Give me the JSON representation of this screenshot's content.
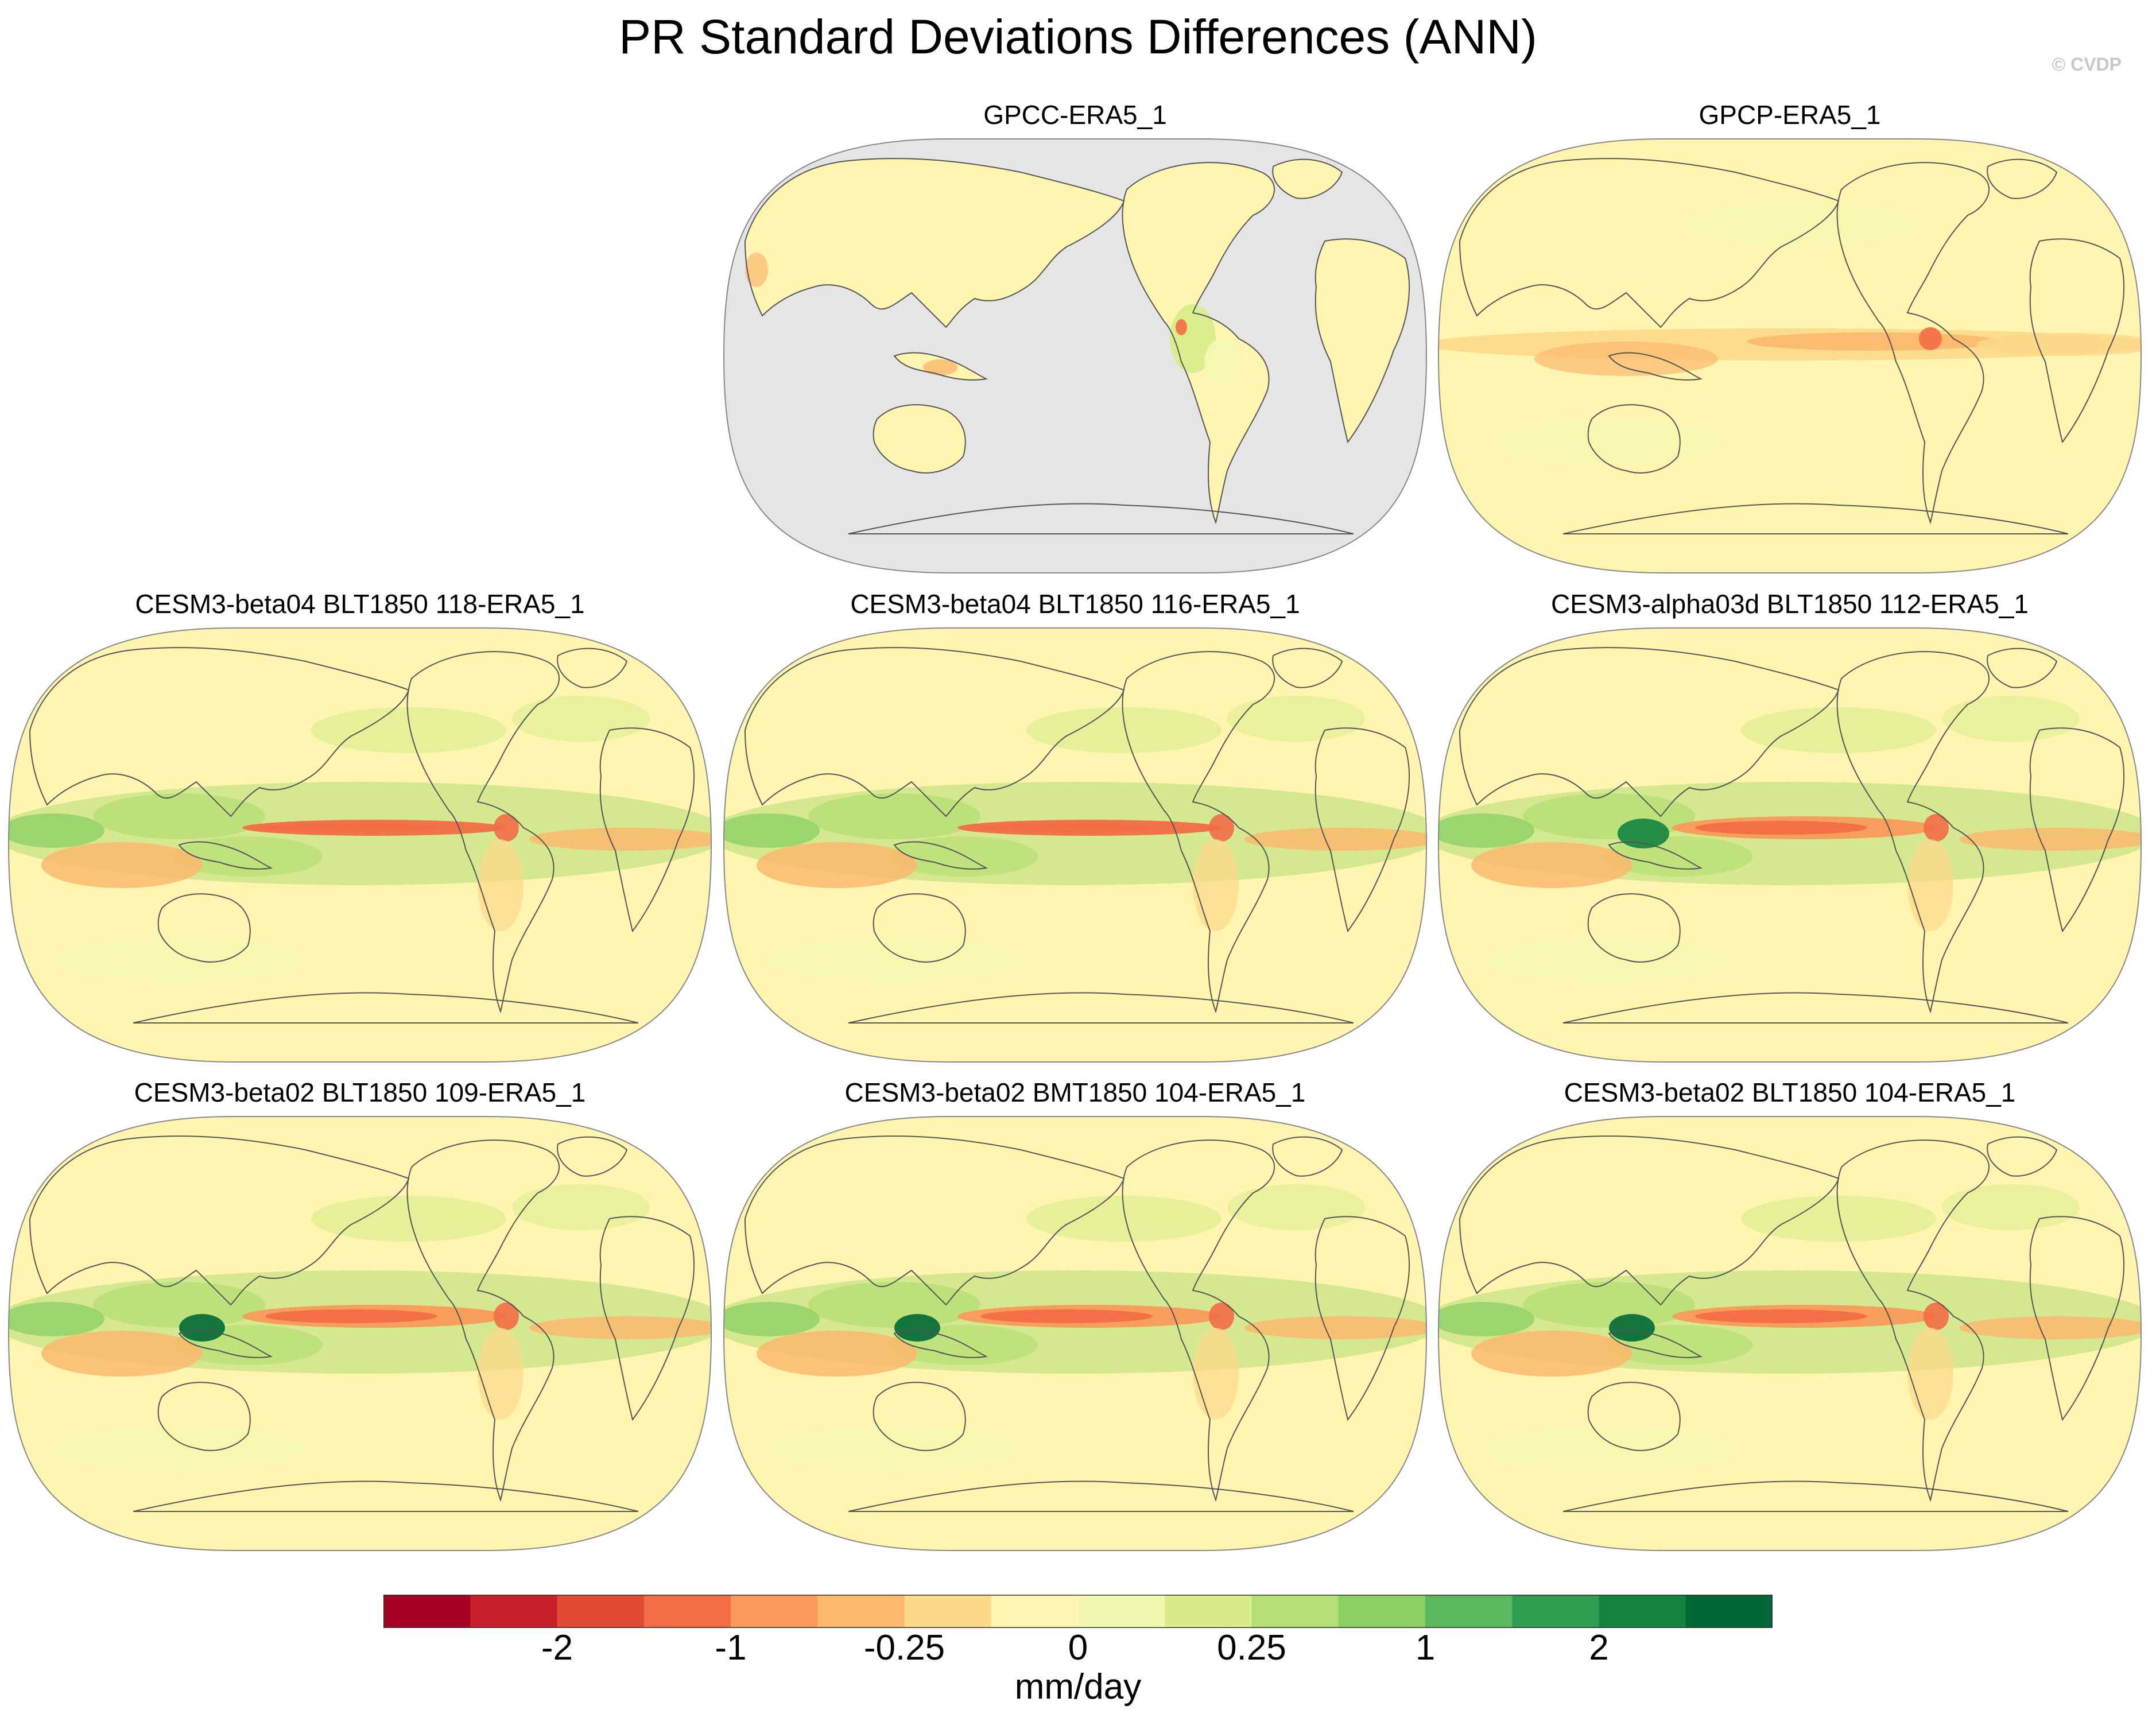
{
  "figure": {
    "title": "PR Standard Deviations Differences (ANN)",
    "watermark": "© CVDP"
  },
  "panels": [
    {
      "id": "gpcc",
      "title": "GPCC-ERA5_1",
      "mask_ocean": true,
      "pattern": "obs_land"
    },
    {
      "id": "gpcp",
      "title": "GPCP-ERA5_1",
      "mask_ocean": false,
      "pattern": "obs_ocean"
    },
    {
      "id": "b04_118",
      "title": "CESM3-beta04 BLT1850 118-ERA5_1",
      "mask_ocean": false,
      "pattern": "model_a"
    },
    {
      "id": "b04_116",
      "title": "CESM3-beta04 BLT1850 116-ERA5_1",
      "mask_ocean": false,
      "pattern": "model_a"
    },
    {
      "id": "a03d_112",
      "title": "CESM3-alpha03d BLT1850 112-ERA5_1",
      "mask_ocean": false,
      "pattern": "model_b"
    },
    {
      "id": "b02_109",
      "title": "CESM3-beta02 BLT1850 109-ERA5_1",
      "mask_ocean": false,
      "pattern": "model_c"
    },
    {
      "id": "b02_bmt104",
      "title": "CESM3-beta02 BMT1850 104-ERA5_1",
      "mask_ocean": false,
      "pattern": "model_c"
    },
    {
      "id": "b02_blt104",
      "title": "CESM3-beta02 BLT1850 104-ERA5_1",
      "mask_ocean": false,
      "pattern": "model_c"
    }
  ],
  "colorbar": {
    "units": "mm/day",
    "colors": [
      "#a50026",
      "#c8202a",
      "#e34a33",
      "#f26d45",
      "#f99a5a",
      "#fcb86d",
      "#fdd98a",
      "#fff4b0",
      "#f3f8b0",
      "#d6ed8a",
      "#b5df74",
      "#8ccf64",
      "#5cb85c",
      "#2f9e50",
      "#13843f",
      "#006837"
    ],
    "tick_labels": [
      "-2",
      "-1",
      "-0.25",
      "0",
      "0.25",
      "1",
      "2"
    ],
    "tick_boundaries": [
      2,
      4,
      6,
      8,
      10,
      12,
      14
    ]
  },
  "map_style": {
    "land_mask_color": "#e5e5e5",
    "coastline_color": "#555555",
    "base_color": "#fff4b0"
  }
}
